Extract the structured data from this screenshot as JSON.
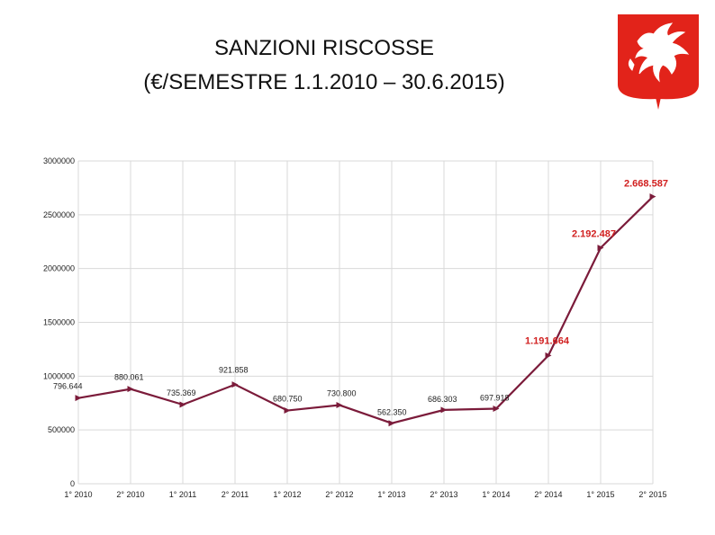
{
  "slide": {
    "title_line1": "SANZIONI RISCOSSE",
    "title_line2": "(€/SEMESTRE 1.1.2010 – 30.6.2015)"
  },
  "logo": {
    "icon": "winged-horse-crest-icon",
    "color": "#e2231a"
  },
  "colors": {
    "line": "#7b1b3a",
    "highlight_label": "#d11f1f",
    "label": "#222222",
    "grid": "#d9d9d9"
  },
  "chart_data": {
    "type": "line",
    "title": "",
    "xlabel": "",
    "ylabel": "",
    "categories": [
      "1° 2010",
      "2° 2010",
      "1° 2011",
      "2° 2011",
      "1° 2012",
      "2° 2012",
      "1° 2013",
      "2° 2013",
      "1° 2014",
      "2° 2014",
      "1° 2015",
      "2° 2015"
    ],
    "values": [
      796644,
      880061,
      735369,
      921858,
      680750,
      730800,
      562350,
      686303,
      697918,
      1191664,
      2192487,
      2668587
    ],
    "data_labels": [
      "796.644",
      "880.061",
      "735.369",
      "921.858",
      "680.750",
      "730.800",
      "562.350",
      "686.303",
      "697.918",
      "1.191.664",
      "2.192.487",
      "2.668.587"
    ],
    "highlighted_labels": [
      9,
      10,
      11
    ],
    "ylim": [
      0,
      3000000
    ],
    "yticks": [
      0,
      500000,
      1000000,
      1500000,
      2000000,
      2500000,
      3000000
    ],
    "ytick_labels": [
      "0",
      "500000",
      "1000000",
      "1500000",
      "2000000",
      "2500000",
      "3000000"
    ],
    "grid": true,
    "legend": "none"
  }
}
